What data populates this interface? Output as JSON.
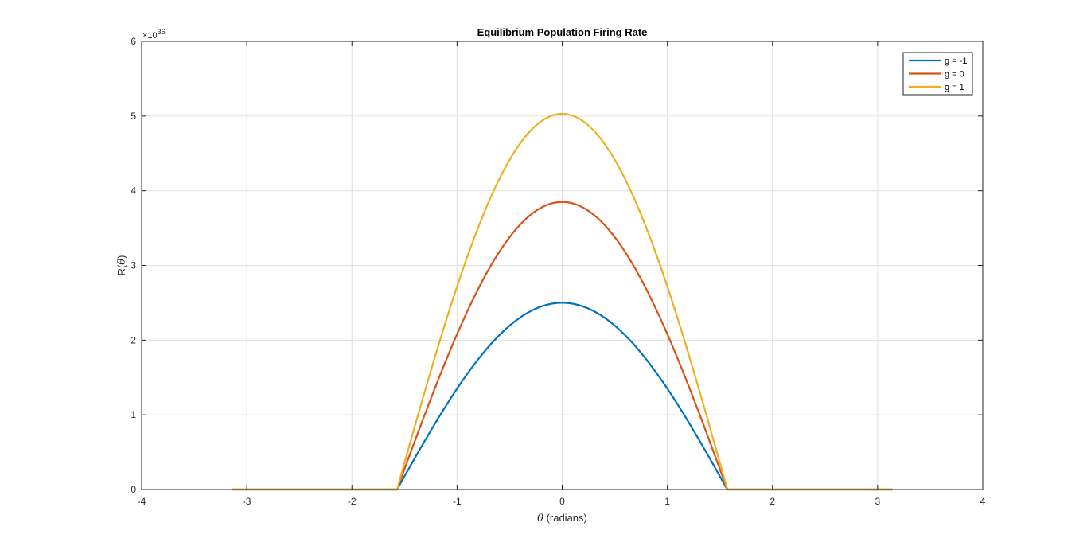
{
  "chart_data": {
    "type": "line",
    "title": "Equilibrium Population Firing Rate",
    "xlabel_symbol": "θ",
    "xlabel_text": " (radians)",
    "ylabel_prefix": "R(",
    "ylabel_symbol": "θ",
    "ylabel_suffix": ")",
    "y_exponent_base": "×10",
    "y_exponent_power": "36",
    "xlim": [
      -4,
      4
    ],
    "ylim": [
      0,
      6
    ],
    "xticks": [
      -4,
      -3,
      -2,
      -1,
      0,
      1,
      2,
      3,
      4
    ],
    "yticks": [
      0,
      1,
      2,
      3,
      4,
      5,
      6
    ],
    "grid": true,
    "legend_position": "top-right",
    "domain": [
      -3.1416,
      3.1416
    ],
    "support": [
      -1.5708,
      1.5708
    ],
    "shape": "cosine",
    "series": [
      {
        "name": "g = -1",
        "peak": 2.5,
        "color": "#0072BD"
      },
      {
        "name": "g = 0",
        "peak": 3.85,
        "color": "#D95319"
      },
      {
        "name": "g = 1",
        "peak": 5.03,
        "color": "#EDB120"
      }
    ]
  }
}
